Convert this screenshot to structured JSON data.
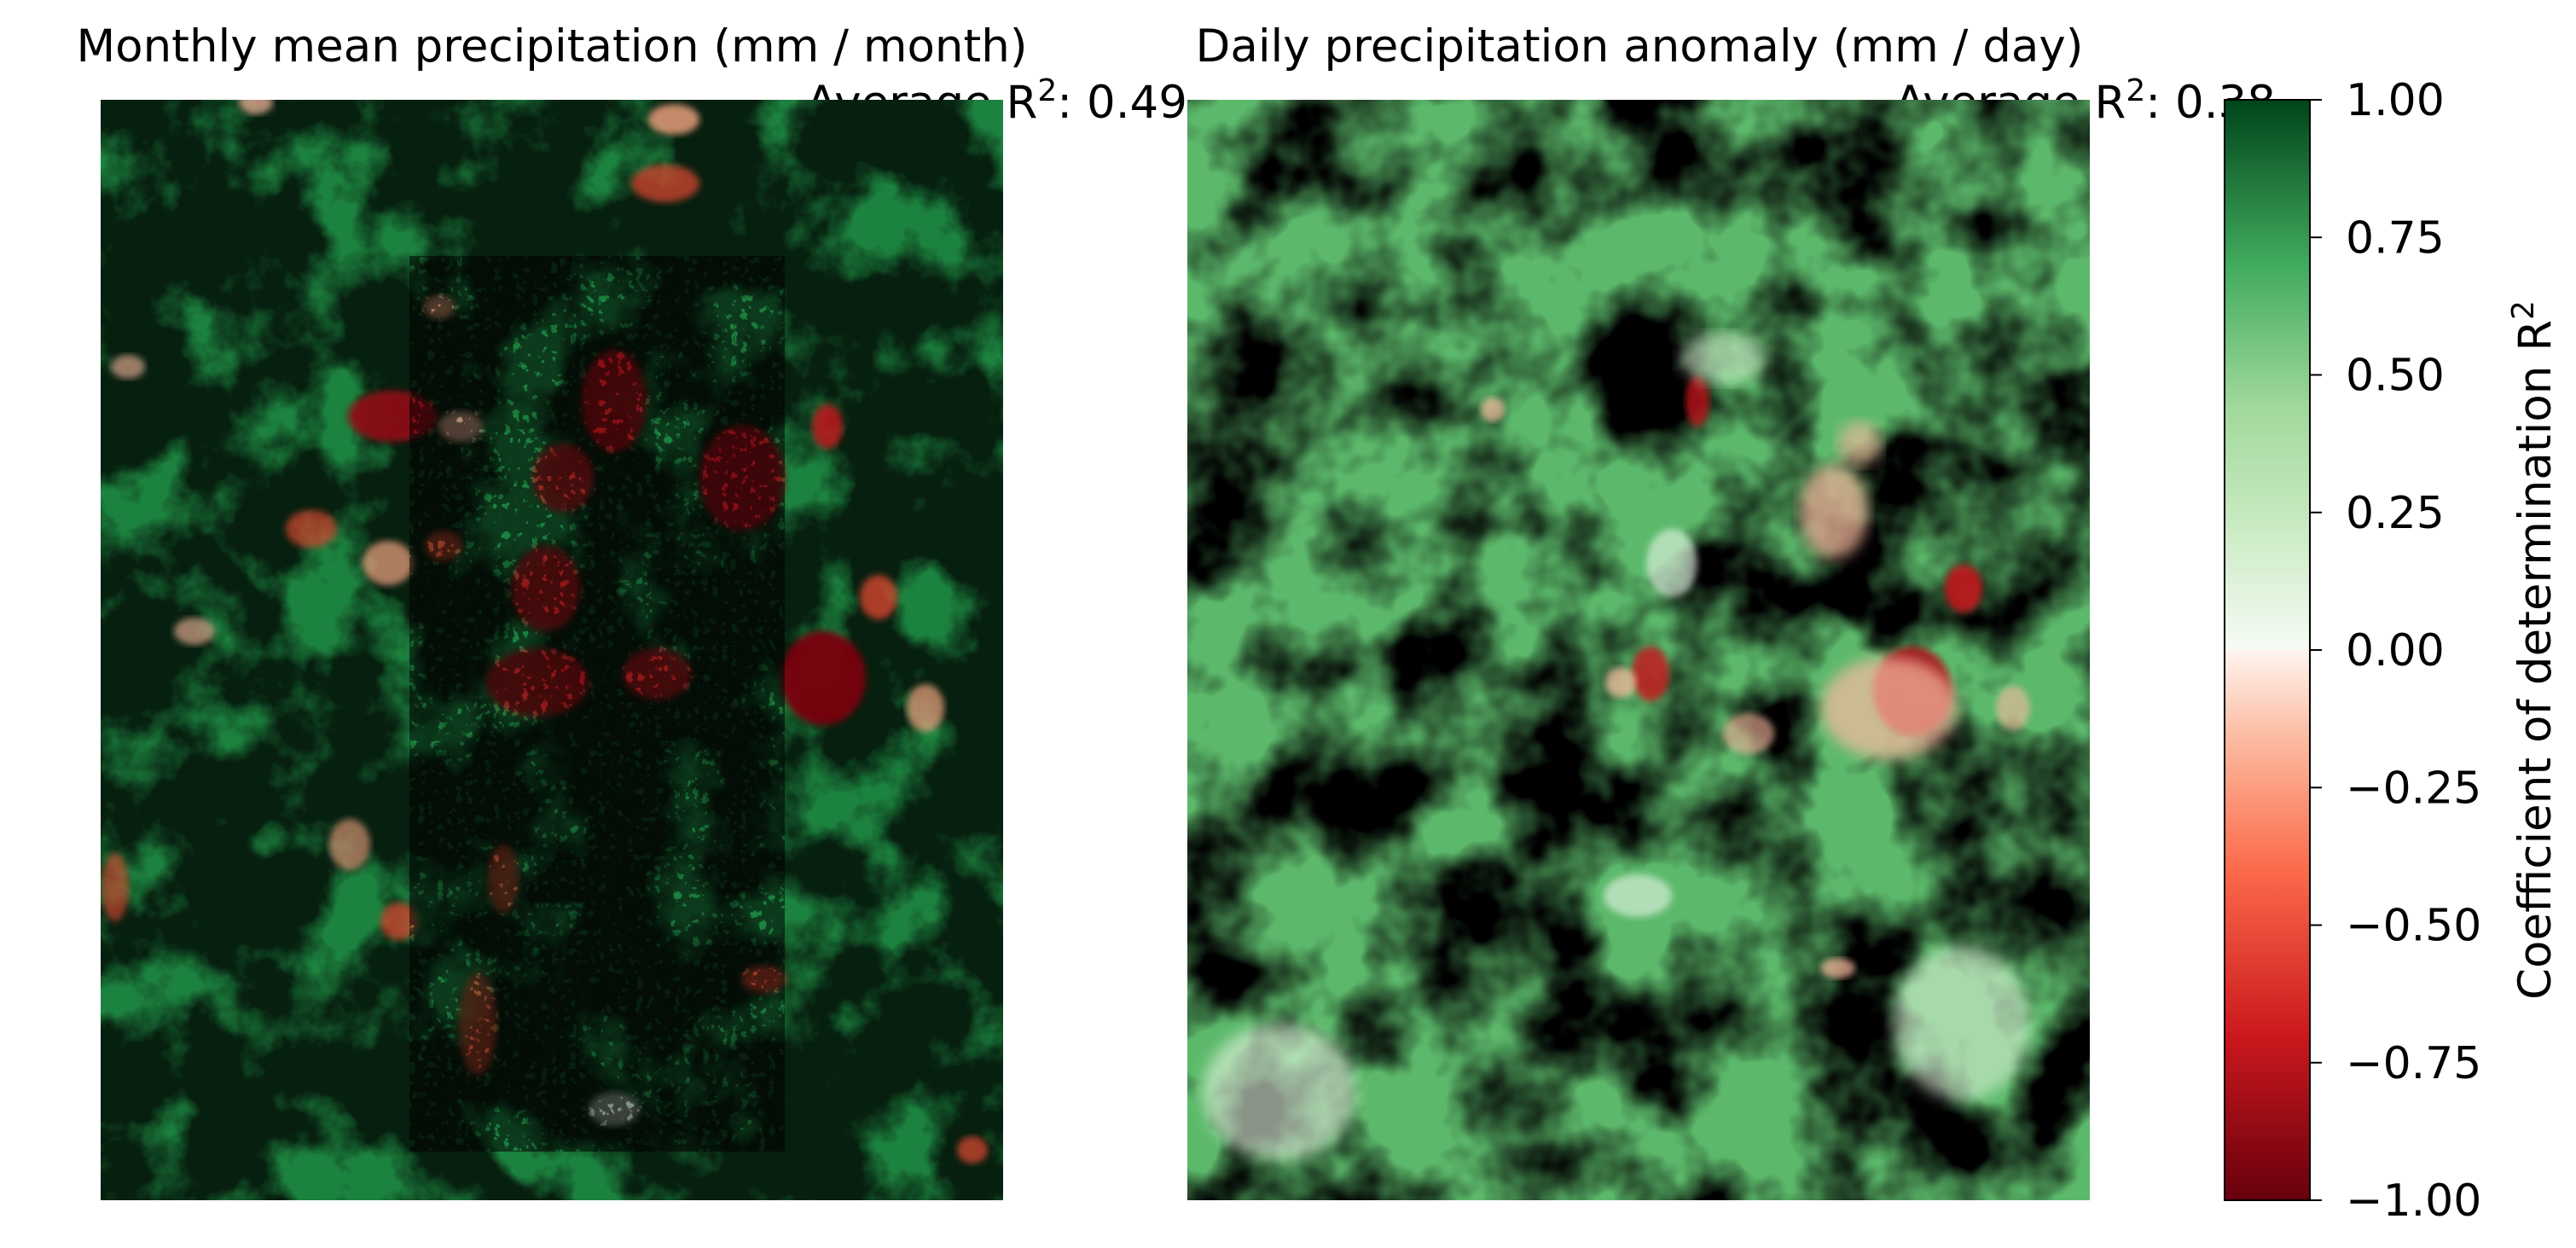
{
  "chart_data": [
    {
      "type": "heatmap",
      "title": "Monthly mean precipitation (mm / month)",
      "annotation": {
        "prefix": "Average R",
        "sup": "2",
        "suffix": ": 0.49"
      },
      "value_range": [
        -1.0,
        1.0
      ],
      "average_r2": 0.49,
      "axes_visible": false
    },
    {
      "type": "heatmap",
      "title": "Daily precipitation anomaly (mm / day)",
      "annotation": {
        "prefix": "Average R",
        "sup": "2",
        "suffix": ": 0.38"
      },
      "value_range": [
        -1.0,
        1.0
      ],
      "average_r2": 0.38,
      "axes_visible": false
    }
  ],
  "colorbar": {
    "label_prefix": "Coefficient of determination R",
    "label_sup": "2",
    "range": [
      -1.0,
      1.0
    ],
    "ticks": [
      {
        "value": 1.0,
        "label": "1.00"
      },
      {
        "value": 0.75,
        "label": "0.75"
      },
      {
        "value": 0.5,
        "label": "0.50"
      },
      {
        "value": 0.25,
        "label": "0.25"
      },
      {
        "value": 0.0,
        "label": "0.00"
      },
      {
        "value": -0.25,
        "label": "−0.25"
      },
      {
        "value": -0.5,
        "label": "−0.50"
      },
      {
        "value": -0.75,
        "label": "−0.75"
      },
      {
        "value": -1.0,
        "label": "−1.00"
      }
    ],
    "colormap": "RdYlGn-style red-white-green",
    "colors": {
      "min": "#67000d",
      "neg_mid": "#ef3b2c",
      "neg_light": "#fcbba1",
      "zero": "#f7fcf5",
      "pos_light": "#a1d99b",
      "pos_mid": "#41ab5d",
      "max": "#00441b"
    }
  }
}
